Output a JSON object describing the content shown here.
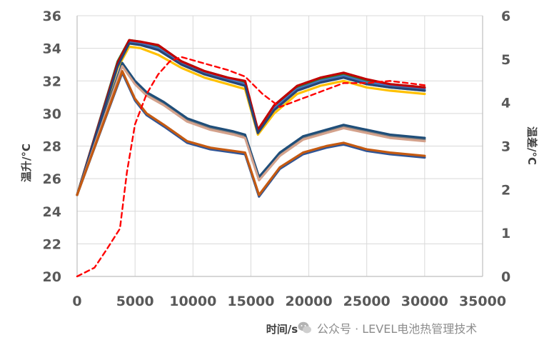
{
  "chart_data": {
    "type": "line",
    "xlabel": "时间/s",
    "ylabel": "温升/°C",
    "y2label": "温差/°C",
    "xlim": [
      0,
      35000
    ],
    "ylim": [
      20,
      36
    ],
    "y2lim": [
      0,
      6
    ],
    "grid": true,
    "xticks": [
      0,
      5000,
      10000,
      15000,
      20000,
      25000,
      30000,
      35000
    ],
    "yticks": [
      20,
      22,
      24,
      26,
      28,
      30,
      32,
      34,
      36
    ],
    "y2ticks": [
      0,
      1,
      2,
      3,
      4,
      5,
      6
    ],
    "series": [
      {
        "color": "#2e7d32",
        "axis": "left",
        "x": [
          0,
          3500,
          4500,
          5500,
          7000,
          9000,
          11000,
          13000,
          14500,
          15600,
          17000,
          19000,
          21000,
          23000,
          25000,
          27000,
          30000
        ],
        "y": [
          25,
          33.2,
          34.5,
          34.4,
          34.1,
          33.2,
          32.6,
          32.2,
          31.9,
          29.0,
          30.4,
          31.6,
          32.1,
          32.4,
          32.0,
          31.8,
          31.6
        ]
      },
      {
        "color": "#4472c4",
        "axis": "left",
        "x": [
          0,
          3500,
          4500,
          5500,
          7000,
          9000,
          11000,
          13000,
          14500,
          15600,
          17000,
          19000,
          21000,
          23000,
          25000,
          27000,
          30000
        ],
        "y": [
          25,
          33.1,
          34.4,
          34.3,
          34.0,
          33.1,
          32.5,
          32.1,
          31.8,
          28.9,
          30.3,
          31.5,
          32.0,
          32.3,
          31.9,
          31.7,
          31.5
        ]
      },
      {
        "color": "#70ad47",
        "axis": "left",
        "x": [
          0,
          3500,
          4500,
          5500,
          7000,
          9000,
          11000,
          13000,
          14500,
          15600,
          17000,
          19000,
          21000,
          23000,
          25000,
          27000,
          30000
        ],
        "y": [
          25,
          33.0,
          34.3,
          34.2,
          33.9,
          33.0,
          32.4,
          32.0,
          31.7,
          28.9,
          30.2,
          31.4,
          31.9,
          32.2,
          31.8,
          31.6,
          31.4
        ]
      },
      {
        "color": "#c00000",
        "axis": "left",
        "x": [
          0,
          3500,
          4500,
          5500,
          7000,
          9000,
          11000,
          13000,
          14500,
          15600,
          17000,
          19000,
          21000,
          23000,
          25000,
          27000,
          30000
        ],
        "y": [
          25,
          33.1,
          34.5,
          34.4,
          34.2,
          33.2,
          32.6,
          32.2,
          32.0,
          29.0,
          30.5,
          31.7,
          32.2,
          32.5,
          32.1,
          31.8,
          31.6
        ]
      },
      {
        "color": "#ffc000",
        "axis": "left",
        "x": [
          0,
          3500,
          4500,
          5500,
          7000,
          9000,
          11000,
          13000,
          14500,
          15600,
          17000,
          19000,
          21000,
          23000,
          25000,
          27000,
          30000
        ],
        "y": [
          25,
          32.8,
          34.1,
          34.0,
          33.6,
          32.8,
          32.2,
          31.8,
          31.5,
          28.7,
          30.0,
          31.2,
          31.7,
          32.0,
          31.6,
          31.4,
          31.2
        ]
      },
      {
        "color": "#264478",
        "axis": "left",
        "x": [
          0,
          3500,
          4500,
          5500,
          7000,
          9000,
          11000,
          13000,
          14500,
          15600,
          17000,
          19000,
          21000,
          23000,
          25000,
          27000,
          30000
        ],
        "y": [
          25,
          32.9,
          34.3,
          34.2,
          33.9,
          33.0,
          32.4,
          32.0,
          31.7,
          28.8,
          30.2,
          31.4,
          31.9,
          32.2,
          31.8,
          31.6,
          31.4
        ]
      },
      {
        "color": "#7f7f7f",
        "axis": "left",
        "x": [
          0,
          3900,
          5000,
          6000,
          7500,
          9500,
          11500,
          13500,
          14500,
          15700,
          17500,
          19500,
          21500,
          23000,
          25000,
          27000,
          30000
        ],
        "y": [
          25,
          33.0,
          31.9,
          31.2,
          30.6,
          29.6,
          29.1,
          28.8,
          28.6,
          26.0,
          27.5,
          28.5,
          28.9,
          29.2,
          28.9,
          28.6,
          28.4
        ]
      },
      {
        "color": "#1f4e79",
        "axis": "left",
        "x": [
          0,
          3900,
          5000,
          6000,
          7500,
          9500,
          11500,
          13500,
          14500,
          15700,
          17500,
          19500,
          21500,
          23000,
          25000,
          27000,
          30000
        ],
        "y": [
          25,
          33.1,
          32.0,
          31.3,
          30.7,
          29.7,
          29.2,
          28.9,
          28.7,
          26.1,
          27.6,
          28.6,
          29.0,
          29.3,
          29.0,
          28.7,
          28.5
        ]
      },
      {
        "color": "#d4a28c",
        "axis": "left",
        "x": [
          0,
          3900,
          5000,
          6000,
          7500,
          9500,
          11500,
          13500,
          14500,
          15700,
          17500,
          19500,
          21500,
          23000,
          25000,
          27000,
          30000
        ],
        "y": [
          25,
          32.9,
          31.8,
          31.1,
          30.5,
          29.5,
          29.0,
          28.7,
          28.5,
          25.9,
          27.4,
          28.4,
          28.8,
          29.1,
          28.8,
          28.5,
          28.3
        ]
      },
      {
        "color": "#2f5597",
        "axis": "left",
        "x": [
          0,
          3900,
          5000,
          6000,
          7500,
          9500,
          11500,
          13500,
          14500,
          15700,
          17500,
          19500,
          21500,
          23000,
          25000,
          27000,
          30000
        ],
        "y": [
          25,
          32.5,
          30.8,
          29.9,
          29.2,
          28.2,
          27.8,
          27.6,
          27.5,
          24.9,
          26.6,
          27.5,
          27.9,
          28.1,
          27.7,
          27.5,
          27.3
        ]
      },
      {
        "color": "#c55a11",
        "axis": "left",
        "x": [
          0,
          3900,
          5000,
          6000,
          7500,
          9500,
          11500,
          13500,
          14500,
          15700,
          17500,
          19500,
          21500,
          23000,
          25000,
          27000,
          30000
        ],
        "y": [
          25,
          32.6,
          30.9,
          30.0,
          29.3,
          28.3,
          27.9,
          27.7,
          27.6,
          25.0,
          26.7,
          27.6,
          28.0,
          28.2,
          27.8,
          27.6,
          27.4
        ]
      },
      {
        "color": "#ff0000",
        "axis": "right",
        "dash": true,
        "x": [
          0,
          1500,
          2500,
          3700,
          4300,
          5000,
          6000,
          7000,
          8000,
          9000,
          11000,
          13000,
          14500,
          16000,
          17500,
          19000,
          21000,
          23000,
          25000,
          27000,
          30000
        ],
        "y": [
          0,
          0.2,
          0.6,
          1.1,
          2.4,
          3.5,
          4.2,
          4.65,
          4.95,
          5.05,
          4.9,
          4.75,
          4.6,
          4.2,
          3.9,
          4.05,
          4.25,
          4.45,
          4.45,
          4.5,
          4.4
        ]
      }
    ]
  },
  "watermark": {
    "text": "公众号 · LEVEL电池热管理技术"
  }
}
